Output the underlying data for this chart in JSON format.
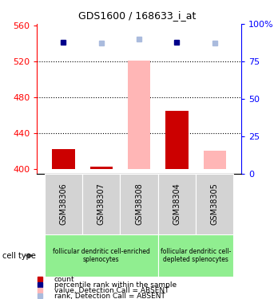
{
  "title": "GDS1600 / 168633_i_at",
  "samples": [
    "GSM38306",
    "GSM38307",
    "GSM38308",
    "GSM38304",
    "GSM38305"
  ],
  "count_values": [
    422,
    403,
    null,
    465,
    null
  ],
  "count_absent_values": [
    null,
    null,
    521,
    null,
    420
  ],
  "rank_values": [
    88,
    null,
    null,
    88,
    null
  ],
  "rank_absent_values": [
    null,
    87,
    90,
    null,
    87
  ],
  "ylim_left": [
    395,
    562
  ],
  "ylim_right": [
    0,
    100
  ],
  "yticks_left": [
    400,
    440,
    480,
    520,
    560
  ],
  "yticks_right": [
    0,
    25,
    50,
    75,
    100
  ],
  "bar_baseline": 400,
  "groups": [
    {
      "label": "follicular dendritic cell-enriched\nsplenocytes",
      "samples": [
        0,
        1,
        2
      ],
      "color": "#90EE90"
    },
    {
      "label": "follicular dendritic cell-\ndepleted splenocytes",
      "samples": [
        3,
        4
      ],
      "color": "#90EE90"
    }
  ],
  "colors": {
    "count_present": "#CC0000",
    "count_absent": "#FFB6B6",
    "rank_present": "#00008B",
    "rank_absent": "#AABBDD",
    "grid": "black",
    "sample_bg": "#D3D3D3"
  },
  "legend": [
    {
      "label": "count",
      "color": "#CC0000"
    },
    {
      "label": "percentile rank within the sample",
      "color": "#00008B"
    },
    {
      "label": "value, Detection Call = ABSENT",
      "color": "#FFB6B6"
    },
    {
      "label": "rank, Detection Call = ABSENT",
      "color": "#AABBDD"
    }
  ],
  "fig_width": 3.43,
  "fig_height": 3.75,
  "dpi": 100
}
